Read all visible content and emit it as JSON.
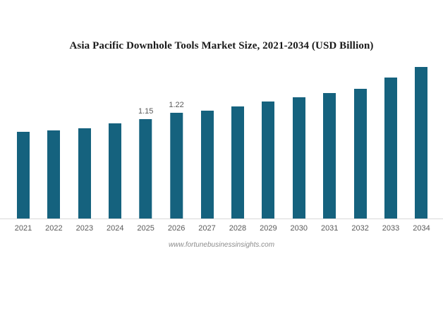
{
  "chart_data": {
    "type": "bar",
    "title": "Asia Pacific Downhole Tools Market Size, 2021-2034 (USD Billion)",
    "categories": [
      "2021",
      "2022",
      "2023",
      "2024",
      "2025",
      "2026",
      "2027",
      "2028",
      "2029",
      "2030",
      "2031",
      "2032",
      "2033",
      "2034"
    ],
    "values": [
      1.0,
      1.02,
      1.04,
      1.1,
      1.15,
      1.22,
      1.25,
      1.3,
      1.35,
      1.4,
      1.45,
      1.5,
      1.63,
      1.75
    ],
    "data_labels": {
      "2025": "1.15",
      "2026": "1.22"
    },
    "xlabel": "",
    "ylabel": "",
    "ylim": [
      0,
      1.9
    ],
    "grid": false,
    "legend": "none",
    "bar_color": "#15627e",
    "axis_line_color": "#d9d9d9",
    "tick_label_color": "#595959",
    "data_label_color": "#595959",
    "title_color": "#1a1a1a"
  },
  "footer": {
    "watermark": "www.fortunebusinessinsights.com"
  }
}
